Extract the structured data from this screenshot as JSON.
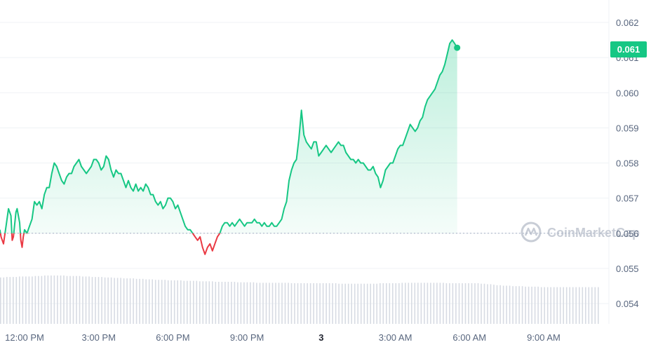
{
  "chart_data": {
    "type": "area",
    "y_axis": {
      "ticks": [
        "0.062",
        "0.061",
        "0.060",
        "0.059",
        "0.058",
        "0.057",
        "0.056",
        "0.055",
        "0.054"
      ],
      "range": [
        0.0539,
        0.0626
      ]
    },
    "x_axis": {
      "ticks": [
        {
          "label": "12:00 PM",
          "hour": 12
        },
        {
          "label": "3:00 PM",
          "hour": 15
        },
        {
          "label": "6:00 PM",
          "hour": 18
        },
        {
          "label": "9:00 PM",
          "hour": 21
        },
        {
          "label": "3",
          "hour": 24,
          "emphasis": true
        },
        {
          "label": "3:00 AM",
          "hour": 27
        },
        {
          "label": "6:00 AM",
          "hour": 30
        },
        {
          "label": "9:00 AM",
          "hour": 33
        }
      ]
    },
    "baseline_price": 0.056,
    "current_price": {
      "value": "0.061",
      "price": 0.06128
    },
    "colors": {
      "up": "#16c784",
      "down": "#ea3943",
      "grid": "#eff2f5",
      "volume": "#d7dbe3"
    },
    "series": [
      {
        "values": [
          [
            11.0,
            0.0561
          ],
          [
            11.05,
            0.0559
          ],
          [
            11.15,
            0.0557
          ],
          [
            11.25,
            0.0562
          ],
          [
            11.35,
            0.0567
          ],
          [
            11.45,
            0.0565
          ],
          [
            11.5,
            0.0558
          ],
          [
            11.55,
            0.0559
          ],
          [
            11.65,
            0.0566
          ],
          [
            11.7,
            0.0567
          ],
          [
            11.8,
            0.0563
          ],
          [
            11.85,
            0.0558
          ],
          [
            11.9,
            0.0556
          ],
          [
            11.95,
            0.0559
          ],
          [
            12.0,
            0.0561
          ],
          [
            12.1,
            0.056
          ],
          [
            12.2,
            0.0562
          ],
          [
            12.3,
            0.0564
          ],
          [
            12.4,
            0.0569
          ],
          [
            12.5,
            0.0568
          ],
          [
            12.6,
            0.0569
          ],
          [
            12.7,
            0.0567
          ],
          [
            12.8,
            0.0571
          ],
          [
            12.9,
            0.0573
          ],
          [
            13.0,
            0.0573
          ],
          [
            13.1,
            0.0577
          ],
          [
            13.2,
            0.058
          ],
          [
            13.3,
            0.0579
          ],
          [
            13.4,
            0.0577
          ],
          [
            13.5,
            0.0575
          ],
          [
            13.6,
            0.0574
          ],
          [
            13.7,
            0.0576
          ],
          [
            13.8,
            0.0577
          ],
          [
            13.9,
            0.0577
          ],
          [
            14.0,
            0.0579
          ],
          [
            14.1,
            0.058
          ],
          [
            14.2,
            0.0581
          ],
          [
            14.3,
            0.0579
          ],
          [
            14.4,
            0.0578
          ],
          [
            14.5,
            0.0577
          ],
          [
            14.6,
            0.0578
          ],
          [
            14.7,
            0.0579
          ],
          [
            14.8,
            0.0581
          ],
          [
            14.9,
            0.0581
          ],
          [
            15.0,
            0.058
          ],
          [
            15.1,
            0.0578
          ],
          [
            15.2,
            0.0579
          ],
          [
            15.3,
            0.0582
          ],
          [
            15.4,
            0.0581
          ],
          [
            15.5,
            0.0578
          ],
          [
            15.6,
            0.0576
          ],
          [
            15.7,
            0.0578
          ],
          [
            15.8,
            0.0577
          ],
          [
            15.9,
            0.0577
          ],
          [
            16.0,
            0.0575
          ],
          [
            16.1,
            0.0573
          ],
          [
            16.2,
            0.0575
          ],
          [
            16.3,
            0.0573
          ],
          [
            16.4,
            0.0572
          ],
          [
            16.5,
            0.0574
          ],
          [
            16.6,
            0.0572
          ],
          [
            16.7,
            0.0573
          ],
          [
            16.8,
            0.0572
          ],
          [
            16.9,
            0.0574
          ],
          [
            17.0,
            0.0573
          ],
          [
            17.1,
            0.0571
          ],
          [
            17.2,
            0.0571
          ],
          [
            17.3,
            0.0569
          ],
          [
            17.4,
            0.0568
          ],
          [
            17.5,
            0.0569
          ],
          [
            17.6,
            0.0567
          ],
          [
            17.7,
            0.0568
          ],
          [
            17.8,
            0.057
          ],
          [
            17.9,
            0.057
          ],
          [
            18.0,
            0.0569
          ],
          [
            18.1,
            0.0567
          ],
          [
            18.2,
            0.0568
          ],
          [
            18.3,
            0.0566
          ],
          [
            18.4,
            0.0564
          ],
          [
            18.5,
            0.0562
          ],
          [
            18.6,
            0.0561
          ],
          [
            18.7,
            0.0561
          ],
          [
            18.8,
            0.056
          ],
          [
            18.9,
            0.0559
          ],
          [
            19.0,
            0.0558
          ],
          [
            19.1,
            0.0559
          ],
          [
            19.2,
            0.0556
          ],
          [
            19.3,
            0.0554
          ],
          [
            19.4,
            0.0556
          ],
          [
            19.5,
            0.0557
          ],
          [
            19.6,
            0.0555
          ],
          [
            19.7,
            0.0557
          ],
          [
            19.8,
            0.0559
          ],
          [
            19.9,
            0.056
          ],
          [
            20.0,
            0.0562
          ],
          [
            20.1,
            0.0563
          ],
          [
            20.2,
            0.0563
          ],
          [
            20.3,
            0.0562
          ],
          [
            20.4,
            0.0563
          ],
          [
            20.5,
            0.0562
          ],
          [
            20.6,
            0.0563
          ],
          [
            20.7,
            0.0564
          ],
          [
            20.8,
            0.0563
          ],
          [
            20.9,
            0.0562
          ],
          [
            21.0,
            0.0563
          ],
          [
            21.1,
            0.0563
          ],
          [
            21.2,
            0.0563
          ],
          [
            21.3,
            0.0564
          ],
          [
            21.4,
            0.0563
          ],
          [
            21.5,
            0.0563
          ],
          [
            21.6,
            0.0562
          ],
          [
            21.7,
            0.0563
          ],
          [
            21.8,
            0.0562
          ],
          [
            21.9,
            0.0562
          ],
          [
            22.0,
            0.0563
          ],
          [
            22.1,
            0.0562
          ],
          [
            22.2,
            0.0562
          ],
          [
            22.3,
            0.0563
          ],
          [
            22.4,
            0.0564
          ],
          [
            22.5,
            0.0567
          ],
          [
            22.6,
            0.0569
          ],
          [
            22.7,
            0.0575
          ],
          [
            22.8,
            0.0578
          ],
          [
            22.9,
            0.058
          ],
          [
            23.0,
            0.0581
          ],
          [
            23.1,
            0.0587
          ],
          [
            23.2,
            0.0595
          ],
          [
            23.3,
            0.0588
          ],
          [
            23.4,
            0.0586
          ],
          [
            23.5,
            0.0585
          ],
          [
            23.6,
            0.0584
          ],
          [
            23.7,
            0.0586
          ],
          [
            23.8,
            0.0586
          ],
          [
            23.9,
            0.0582
          ],
          [
            24.0,
            0.0583
          ],
          [
            24.1,
            0.0584
          ],
          [
            24.2,
            0.0585
          ],
          [
            24.3,
            0.0584
          ],
          [
            24.4,
            0.0583
          ],
          [
            24.5,
            0.0584
          ],
          [
            24.6,
            0.0585
          ],
          [
            24.7,
            0.0586
          ],
          [
            24.8,
            0.0585
          ],
          [
            24.9,
            0.0585
          ],
          [
            25.0,
            0.0583
          ],
          [
            25.1,
            0.0582
          ],
          [
            25.2,
            0.0581
          ],
          [
            25.3,
            0.0581
          ],
          [
            25.4,
            0.058
          ],
          [
            25.5,
            0.0581
          ],
          [
            25.6,
            0.058
          ],
          [
            25.7,
            0.058
          ],
          [
            25.8,
            0.0579
          ],
          [
            25.9,
            0.0578
          ],
          [
            26.0,
            0.0578
          ],
          [
            26.1,
            0.0579
          ],
          [
            26.2,
            0.0577
          ],
          [
            26.3,
            0.0576
          ],
          [
            26.4,
            0.0573
          ],
          [
            26.5,
            0.0575
          ],
          [
            26.6,
            0.0578
          ],
          [
            26.7,
            0.0579
          ],
          [
            26.8,
            0.058
          ],
          [
            26.9,
            0.058
          ],
          [
            27.0,
            0.0582
          ],
          [
            27.1,
            0.0584
          ],
          [
            27.2,
            0.0585
          ],
          [
            27.3,
            0.0585
          ],
          [
            27.4,
            0.0587
          ],
          [
            27.5,
            0.0589
          ],
          [
            27.6,
            0.0591
          ],
          [
            27.7,
            0.059
          ],
          [
            27.8,
            0.0589
          ],
          [
            27.9,
            0.059
          ],
          [
            28.0,
            0.0592
          ],
          [
            28.1,
            0.0593
          ],
          [
            28.2,
            0.0596
          ],
          [
            28.3,
            0.0598
          ],
          [
            28.4,
            0.0599
          ],
          [
            28.5,
            0.06
          ],
          [
            28.6,
            0.0601
          ],
          [
            28.7,
            0.0603
          ],
          [
            28.8,
            0.0605
          ],
          [
            28.9,
            0.0606
          ],
          [
            29.0,
            0.0608
          ],
          [
            29.1,
            0.0611
          ],
          [
            29.2,
            0.0614
          ],
          [
            29.3,
            0.0615
          ],
          [
            29.4,
            0.0614
          ],
          [
            29.5,
            0.06128
          ]
        ]
      }
    ],
    "volume": {
      "values": [
        0.96,
        0.97,
        0.97,
        0.98,
        0.98,
        0.98,
        0.99,
        0.99,
        1.0,
        1.0,
        1.0,
        1.0,
        0.99,
        0.99,
        0.99,
        0.98,
        0.98,
        0.97,
        0.97,
        0.96,
        0.96,
        0.95,
        0.95,
        0.94,
        0.94,
        0.93,
        0.93,
        0.92,
        0.92,
        0.91,
        0.91,
        0.9,
        0.9,
        0.9,
        0.89,
        0.89,
        0.89,
        0.88,
        0.88,
        0.88,
        0.87,
        0.87,
        0.87,
        0.87,
        0.86,
        0.86,
        0.86,
        0.86,
        0.85,
        0.85,
        0.85,
        0.85,
        0.85,
        0.85,
        0.84,
        0.84,
        0.84,
        0.84,
        0.84,
        0.84,
        0.84,
        0.84,
        0.84,
        0.83,
        0.83,
        0.83,
        0.83,
        0.83,
        0.83,
        0.83,
        0.83,
        0.84,
        0.84,
        0.84,
        0.84,
        0.85,
        0.85,
        0.85,
        0.85,
        0.85,
        0.85,
        0.85,
        0.85,
        0.84,
        0.84,
        0.84,
        0.84,
        0.84,
        0.84,
        0.84,
        0.83,
        0.82,
        0.81,
        0.8,
        0.79,
        0.79,
        0.78,
        0.78,
        0.77,
        0.77,
        0.77,
        0.76,
        0.76,
        0.76,
        0.76,
        0.76,
        0.76,
        0.76,
        0.76,
        0.76,
        0.76,
        0.76,
        0.76
      ]
    }
  },
  "watermark": {
    "text": "CoinMarketCap"
  }
}
